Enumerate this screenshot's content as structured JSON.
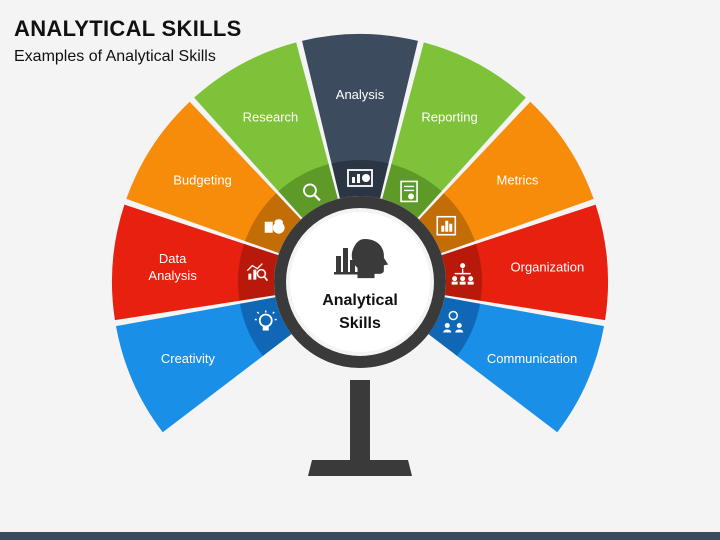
{
  "header": {
    "title": "ANALYTICAL SKILLS",
    "subtitle": "Examples of Analytical Skills"
  },
  "center": {
    "line1": "Analytical",
    "line2": "Skills",
    "icon": "head-chart-icon"
  },
  "segments": [
    {
      "id": "creativity",
      "lines": [
        "Creativity"
      ],
      "color": "#1a8fe8",
      "dark": "#0f67b5",
      "icon": "lightbulb-icon"
    },
    {
      "id": "data-analysis",
      "lines": [
        "Data",
        "Analysis"
      ],
      "color": "#e8200f",
      "dark": "#b8190b",
      "icon": "magnifier-chart-icon"
    },
    {
      "id": "budgeting",
      "lines": [
        "Budgeting"
      ],
      "color": "#f78c0a",
      "dark": "#c36d06",
      "icon": "money-calculator-icon"
    },
    {
      "id": "research",
      "lines": [
        "Research"
      ],
      "color": "#7ec23a",
      "dark": "#5e9a27",
      "icon": "search-document-icon"
    },
    {
      "id": "analysis",
      "lines": [
        "Analysis"
      ],
      "color": "#3d4b5e",
      "dark": "#2b3645",
      "icon": "presentation-chart-icon"
    },
    {
      "id": "reporting",
      "lines": [
        "Reporting"
      ],
      "color": "#7ec23a",
      "dark": "#5e9a27",
      "icon": "report-icon"
    },
    {
      "id": "metrics",
      "lines": [
        "Metrics"
      ],
      "color": "#f78c0a",
      "dark": "#c36d06",
      "icon": "bar-chart-icon"
    },
    {
      "id": "organization",
      "lines": [
        "Organization"
      ],
      "color": "#e8200f",
      "dark": "#b8190b",
      "icon": "org-chart-icon"
    },
    {
      "id": "communication",
      "lines": [
        "Communication"
      ],
      "color": "#1a8fe8",
      "dark": "#0f67b5",
      "icon": "people-chat-icon"
    }
  ]
}
